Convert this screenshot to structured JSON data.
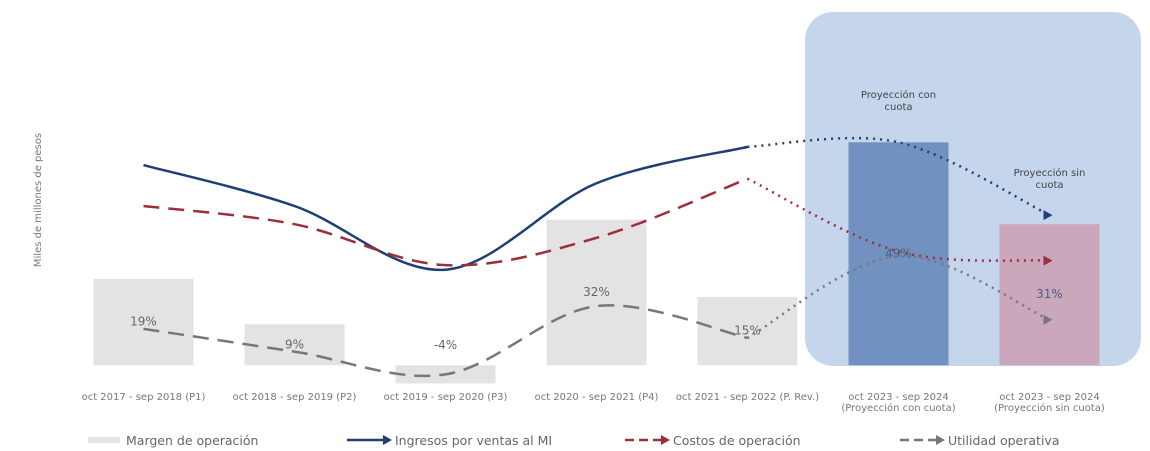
{
  "chart_data": {
    "type": "bar_line",
    "y_axis_label": "Miles de millones de pesos",
    "categories": [
      "oct 2017 - sep 2018 (P1)",
      "oct 2018 - sep 2019 (P2)",
      "oct 2019 - sep 2020 (P3)",
      "oct 2020 - sep 2021 (P4)",
      "oct 2021 - sep 2022 (P. Rev.)",
      "oct 2023 - sep 2024 (Proyección con cuota)",
      "oct 2023 - sep 2024 (Proyección sin cuota)"
    ],
    "ylim": [
      -5,
      55
    ],
    "projection_start": 4,
    "annotations": [
      "Proyección con cuota",
      "Proyección sin cuota"
    ],
    "series": [
      {
        "name": "Margen de operación",
        "type": "bar",
        "colors": [
          "#e3e3e3",
          "#e3e3e3",
          "#e3e3e3",
          "#e3e3e3",
          "#e3e3e3",
          "#7191c0",
          "#caa7ba"
        ],
        "color": "#e3e3e3",
        "values": [
          19,
          9,
          -4,
          32,
          15,
          49,
          31
        ],
        "value_labels": [
          "19%",
          "9%",
          "-4%",
          "32%",
          "15%",
          "49%",
          "31%"
        ]
      },
      {
        "name": "Ingresos por ventas al MI",
        "type": "line",
        "style": "solid",
        "color": "#1f3f73",
        "values": [
          44,
          35,
          21,
          40,
          48,
          49,
          33
        ]
      },
      {
        "name": "Costos de operación",
        "type": "line",
        "style": "dashed",
        "color": "#9b2f3a",
        "values": [
          35,
          31,
          22,
          28,
          41,
          25,
          23
        ]
      },
      {
        "name": "Utilidad operativa",
        "type": "line",
        "style": "dashed",
        "color": "#777777",
        "values": [
          8,
          3,
          -2,
          13,
          6,
          24,
          10
        ]
      }
    ]
  }
}
